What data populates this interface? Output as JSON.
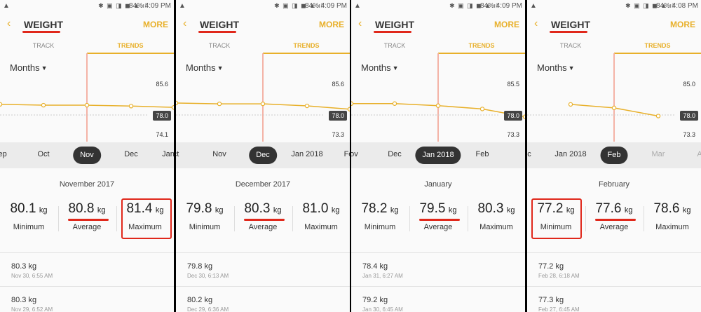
{
  "colors": {
    "accent": "#e8b02a",
    "highlight": "#e0281b",
    "selected_pill": "#333333"
  },
  "panels": [
    {
      "status": {
        "warn_icon": "warning-icon",
        "icons": "✱ ▣ ◨ ◼ ▲.ıl",
        "battery": "84%",
        "time": "4:09 PM"
      },
      "header": {
        "back": "‹",
        "title": "WEIGHT",
        "more": "MORE"
      },
      "tabs": {
        "track": "TRACK",
        "trends": "TRENDS"
      },
      "range": "Months",
      "ymax": "85.6",
      "ymin": "74.1",
      "goal": "78.0",
      "axis": [
        {
          "label": "Sep",
          "x": 0,
          "state": "normal"
        },
        {
          "label": "Oct",
          "x": 62,
          "state": "normal"
        },
        {
          "label": "Nov",
          "x": 124,
          "state": "selected"
        },
        {
          "label": "Dec",
          "x": 187,
          "state": "normal"
        },
        {
          "label": "Jan",
          "x": 240,
          "state": "normal"
        }
      ],
      "period": "November 2017",
      "min": {
        "value": "80.1",
        "unit": "kg",
        "label": "Minimum"
      },
      "avg": {
        "value": "80.8",
        "unit": "kg",
        "label": "Average"
      },
      "max": {
        "value": "81.4",
        "unit": "kg",
        "label": "Maximum"
      },
      "highlight": "max",
      "entries": [
        {
          "weight": "80.3 kg",
          "date": "Nov 30, 6:55 AM"
        },
        {
          "weight": "80.3 kg",
          "date": "Nov 29, 6:52 AM"
        }
      ],
      "series": [
        81.0,
        80.8,
        80.8,
        80.6,
        80.3
      ]
    },
    {
      "status": {
        "warn_icon": "warning-icon",
        "icons": "✱ ▣ ◨ ◼ ▲.ıl",
        "battery": "84%",
        "time": "4:09 PM"
      },
      "header": {
        "back": "‹",
        "title": "WEIGHT",
        "more": "MORE"
      },
      "tabs": {
        "track": "TRACK",
        "trends": "TRENDS"
      },
      "range": "Months",
      "ymax": "85.6",
      "ymin": "73.3",
      "goal": "78.0",
      "axis": [
        {
          "label": "ct",
          "x": 0,
          "state": "normal"
        },
        {
          "label": "Nov",
          "x": 62,
          "state": "normal"
        },
        {
          "label": "Dec",
          "x": 124,
          "state": "selected"
        },
        {
          "label": "Jan 2018",
          "x": 187,
          "state": "normal"
        },
        {
          "label": "Fe",
          "x": 246,
          "state": "normal"
        }
      ],
      "period": "December 2017",
      "min": {
        "value": "79.8",
        "unit": "kg",
        "label": "Minimum"
      },
      "avg": {
        "value": "80.3",
        "unit": "kg",
        "label": "Average"
      },
      "max": {
        "value": "81.0",
        "unit": "kg",
        "label": "Maximum"
      },
      "highlight": "",
      "entries": [
        {
          "weight": "79.8 kg",
          "date": "Dec 30, 6:13 AM"
        },
        {
          "weight": "80.2 kg",
          "date": "Dec 29, 6:36 AM"
        }
      ],
      "series": [
        81.0,
        80.8,
        80.8,
        80.3,
        79.5
      ]
    },
    {
      "status": {
        "warn_icon": "warning-icon",
        "icons": "✱ ▣ ◨ ◼ ▲.ıl",
        "battery": "84%",
        "time": "4:09 PM"
      },
      "header": {
        "back": "‹",
        "title": "WEIGHT",
        "more": "MORE"
      },
      "tabs": {
        "track": "TRACK",
        "trends": "TRENDS"
      },
      "range": "Months",
      "ymax": "85.5",
      "ymin": "73.3",
      "goal": "78.0",
      "axis": [
        {
          "label": "Nov",
          "x": 0,
          "state": "normal"
        },
        {
          "label": "Dec",
          "x": 62,
          "state": "normal"
        },
        {
          "label": "Jan 2018",
          "x": 124,
          "state": "selected"
        },
        {
          "label": "Feb",
          "x": 187,
          "state": "normal"
        }
      ],
      "period": "January",
      "min": {
        "value": "78.2",
        "unit": "kg",
        "label": "Minimum"
      },
      "avg": {
        "value": "79.5",
        "unit": "kg",
        "label": "Average"
      },
      "max": {
        "value": "80.3",
        "unit": "kg",
        "label": "Maximum"
      },
      "highlight": "",
      "entries": [
        {
          "weight": "78.4 kg",
          "date": "Jan 31, 6:27 AM"
        },
        {
          "weight": "79.2 kg",
          "date": "Jan 30, 6:45 AM"
        }
      ],
      "series": [
        80.8,
        80.8,
        80.3,
        79.5,
        77.6
      ]
    },
    {
      "status": {
        "warn_icon": "warning-icon",
        "icons": "✱ ▣ ◨ ◼ ▲.ıl",
        "battery": "84%",
        "time": "4:08 PM"
      },
      "header": {
        "back": "‹",
        "title": "WEIGHT",
        "more": "MORE"
      },
      "tabs": {
        "track": "TRACK",
        "trends": "TRENDS"
      },
      "range": "Months",
      "ymax": "85.0",
      "ymin": "73.3",
      "goal": "78.0",
      "axis": [
        {
          "label": "ec",
          "x": 0,
          "state": "normal"
        },
        {
          "label": "Jan 2018",
          "x": 62,
          "state": "normal"
        },
        {
          "label": "Feb",
          "x": 124,
          "state": "selected"
        },
        {
          "label": "Mar",
          "x": 187,
          "state": "dim"
        },
        {
          "label": "A",
          "x": 246,
          "state": "dim"
        }
      ],
      "period": "February",
      "min": {
        "value": "77.2",
        "unit": "kg",
        "label": "Minimum"
      },
      "avg": {
        "value": "77.6",
        "unit": "kg",
        "label": "Average"
      },
      "max": {
        "value": "78.6",
        "unit": "kg",
        "label": "Maximum"
      },
      "highlight": "min",
      "entries": [
        {
          "weight": "77.2 kg",
          "date": "Feb 28, 6:18 AM"
        },
        {
          "weight": "77.3 kg",
          "date": "Feb 27, 6:45 AM"
        }
      ],
      "series": [
        80.3,
        79.5,
        77.6
      ]
    }
  ]
}
